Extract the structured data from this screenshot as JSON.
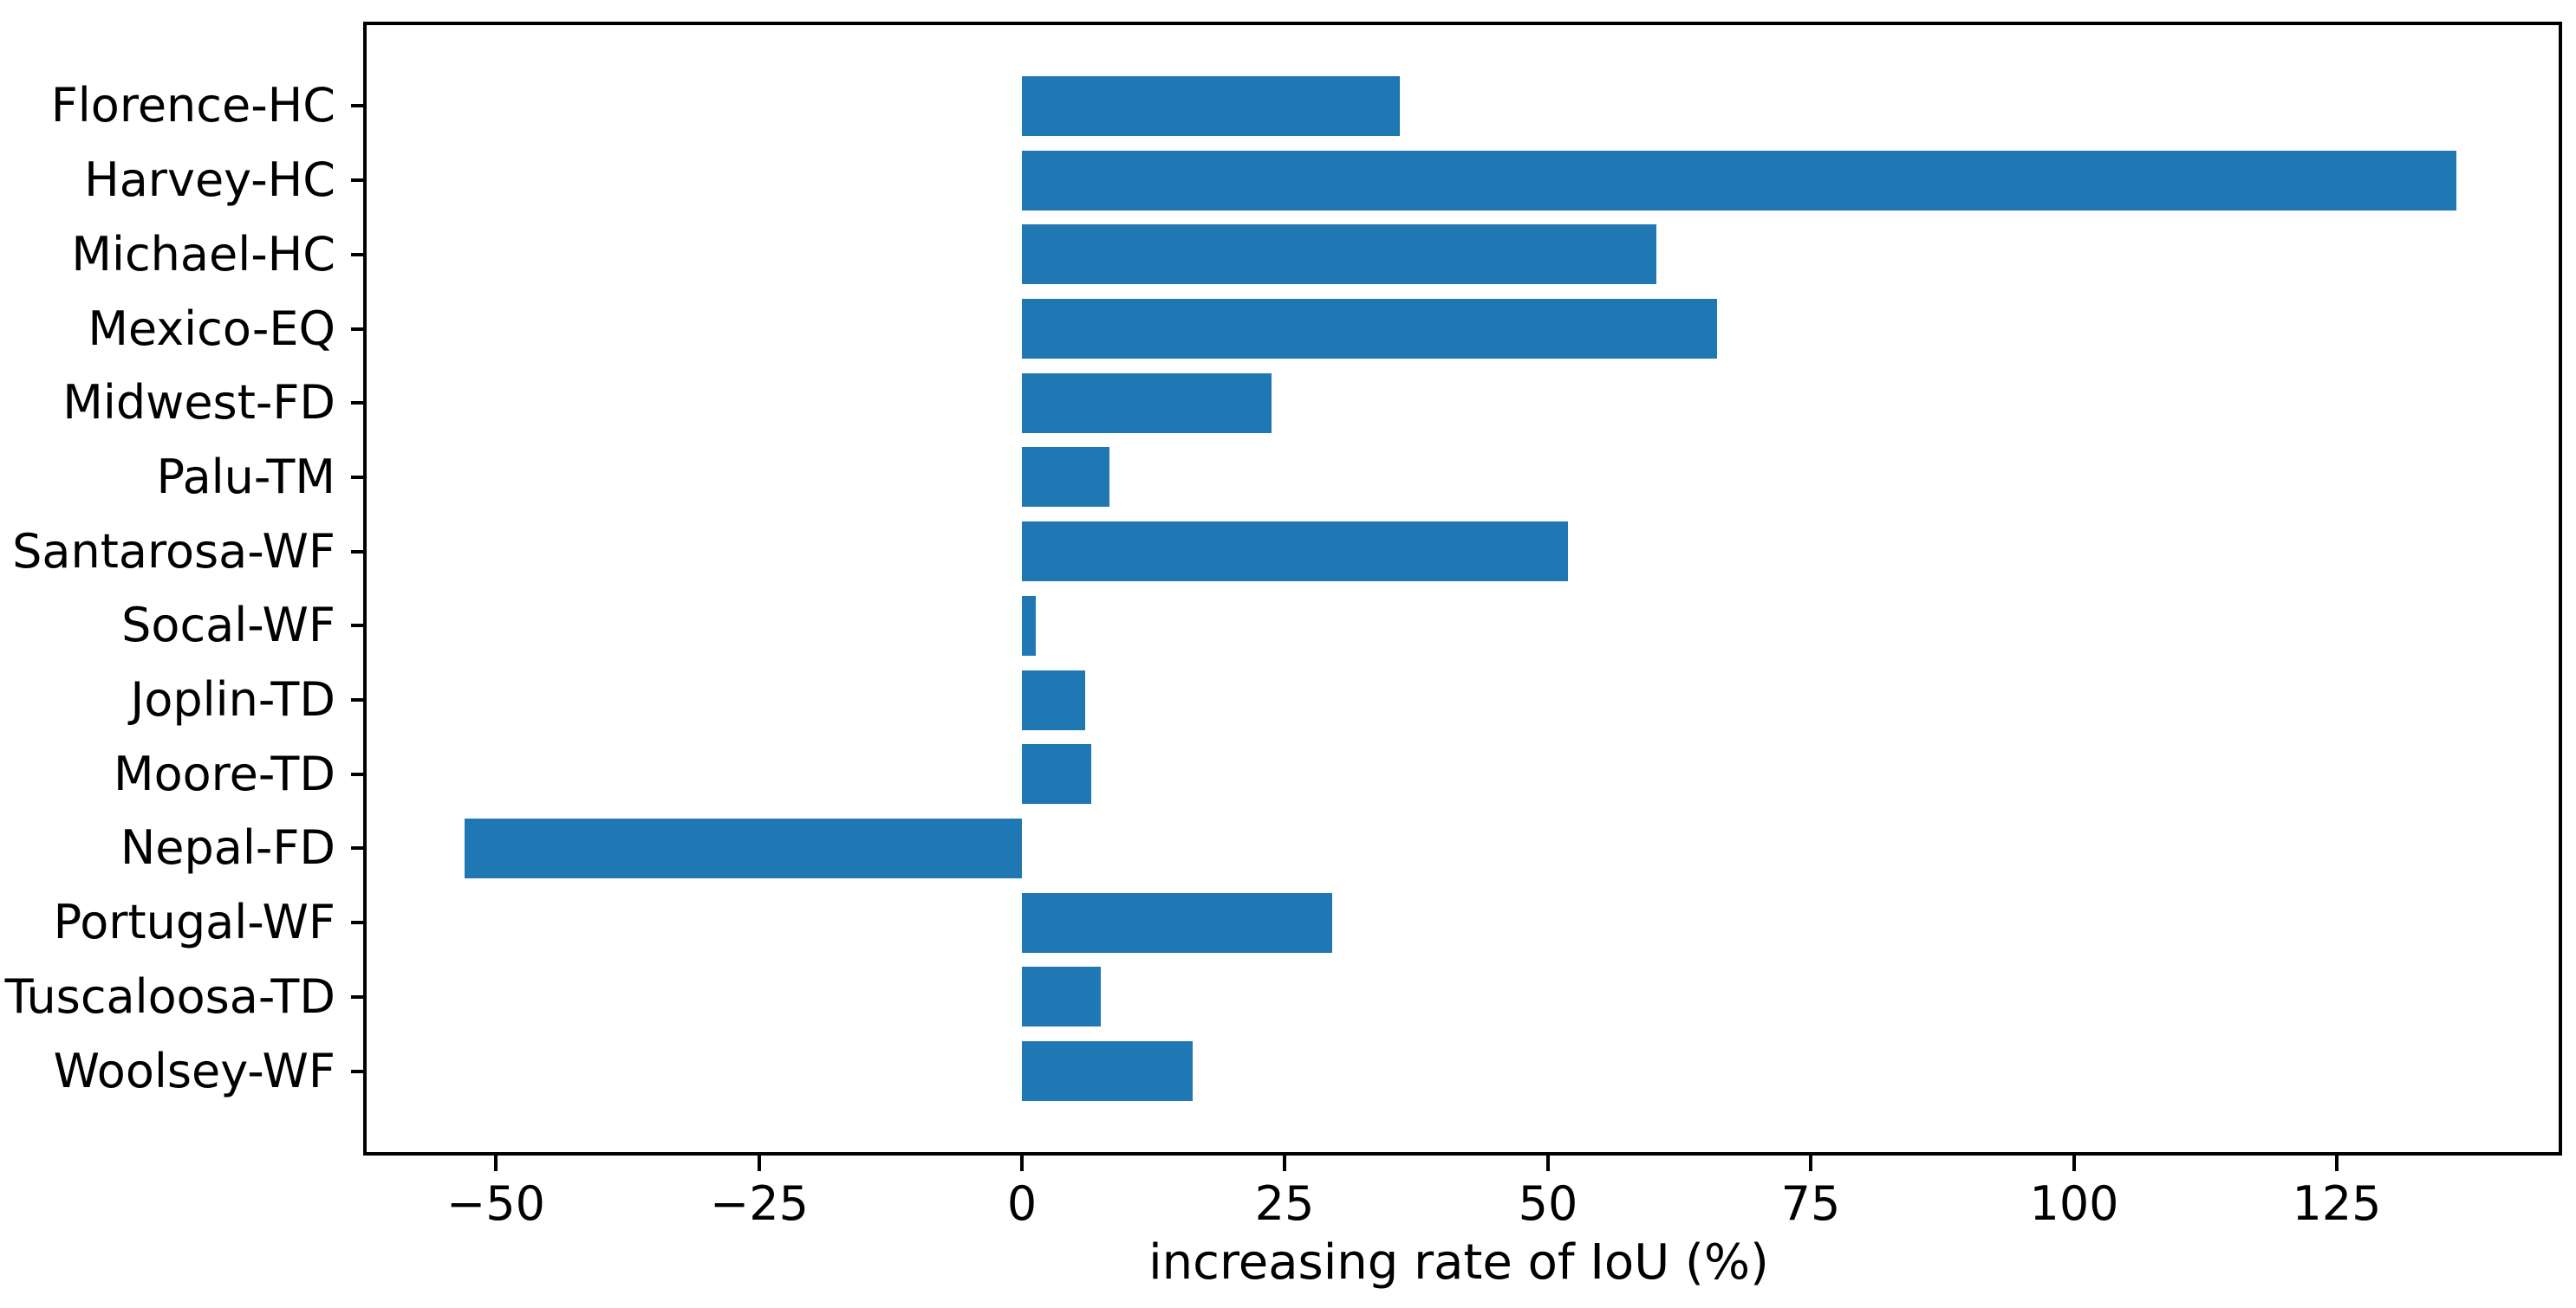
{
  "chart_data": {
    "type": "bar",
    "orientation": "horizontal",
    "title": "",
    "xlabel": "increasing rate of IoU (%)",
    "ylabel": "",
    "categories": [
      "Florence-HC",
      "Harvey-HC",
      "Michael-HC",
      "Mexico-EQ",
      "Midwest-FD",
      "Palu-TM",
      "Santarosa-WF",
      "Socal-WF",
      "Joplin-TD",
      "Moore-TD",
      "Nepal-FD",
      "Portugal-WF",
      "Tuscaloosa-TD",
      "Woolsey-WF"
    ],
    "values": [
      35.9,
      136.4,
      60.3,
      66.1,
      23.7,
      8.3,
      51.9,
      1.3,
      6.0,
      6.6,
      -53.0,
      29.5,
      7.5,
      16.2
    ],
    "xticks": [
      -50,
      -25,
      0,
      25,
      50,
      75,
      100,
      125
    ],
    "xtick_labels": [
      "−50",
      "−25",
      "0",
      "25",
      "50",
      "75",
      "100",
      "125"
    ],
    "xlim": [
      -62.3,
      146.1
    ],
    "grid": false,
    "legend": null,
    "bar_color": "#1f77b4",
    "axis_color": "#000000",
    "background_color": "#ffffff"
  }
}
